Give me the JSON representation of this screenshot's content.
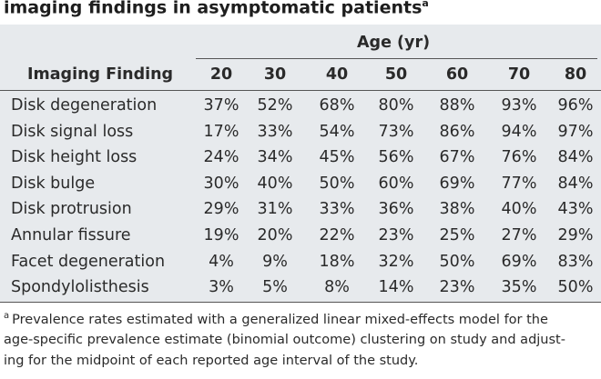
{
  "title": {
    "text": "imaging findings in asymptomatic patients",
    "marker": "a"
  },
  "table": {
    "group_header": "Age (yr)",
    "columns": [
      "Imaging Finding",
      "20",
      "30",
      "40",
      "50",
      "60",
      "70",
      "80"
    ],
    "rows": [
      [
        "Disk degeneration",
        "37%",
        "52%",
        "68%",
        "80%",
        "88%",
        "93%",
        "96%"
      ],
      [
        "Disk signal loss",
        "17%",
        "33%",
        "54%",
        "73%",
        "86%",
        "94%",
        "97%"
      ],
      [
        "Disk height loss",
        "24%",
        "34%",
        "45%",
        "56%",
        "67%",
        "76%",
        "84%"
      ],
      [
        "Disk bulge",
        "30%",
        "40%",
        "50%",
        "60%",
        "69%",
        "77%",
        "84%"
      ],
      [
        "Disk protrusion",
        "29%",
        "31%",
        "33%",
        "36%",
        "38%",
        "40%",
        "43%"
      ],
      [
        "Annular fissure",
        "19%",
        "20%",
        "22%",
        "23%",
        "25%",
        "27%",
        "29%"
      ],
      [
        "Facet degeneration",
        "4%",
        "9%",
        "18%",
        "32%",
        "50%",
        "69%",
        "83%"
      ],
      [
        "Spondylolisthesis",
        "3%",
        "5%",
        "8%",
        "14%",
        "23%",
        "35%",
        "50%"
      ]
    ]
  },
  "footnote": {
    "marker": "a",
    "lines": [
      "Prevalence rates estimated with a generalized linear mixed-effects model for the",
      "age-specific prevalence estimate (binomial outcome) clustering on study and adjust-",
      "ing for the midpoint of each reported age interval of the study."
    ]
  }
}
